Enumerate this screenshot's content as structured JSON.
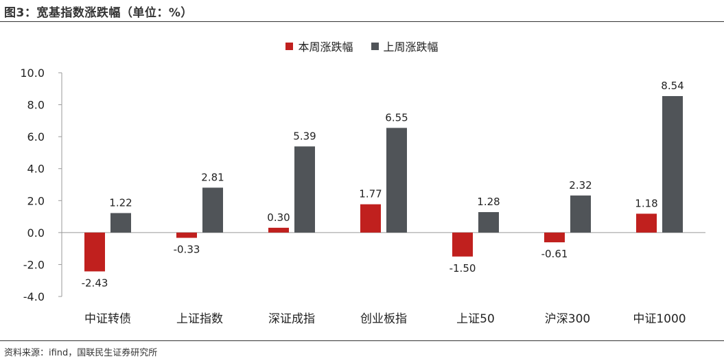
{
  "figure": {
    "title": "图3：宽基指数涨跌幅（单位：%）",
    "source": "资料来源：ifind，国联民生证券研究所"
  },
  "colors": {
    "this_week": "#C0201E",
    "last_week": "#505458",
    "axis": "#999999",
    "text": "#222222"
  },
  "chart_data": {
    "type": "bar",
    "title": "",
    "xlabel": "",
    "ylabel": "",
    "categories": [
      "中证转债",
      "上证指数",
      "深证成指",
      "创业板指",
      "上证50",
      "沪深300",
      "中证1000"
    ],
    "series": [
      {
        "name": "本周涨跌幅",
        "values": [
          -2.43,
          -0.33,
          0.3,
          1.77,
          -1.5,
          -0.61,
          1.18
        ]
      },
      {
        "name": "上周涨跌幅",
        "values": [
          1.22,
          2.81,
          5.39,
          6.55,
          1.28,
          2.32,
          8.54
        ]
      }
    ],
    "ylim": [
      -4.0,
      10.0
    ],
    "yticks": [
      -4.0,
      -2.0,
      0.0,
      2.0,
      4.0,
      6.0,
      8.0,
      10.0
    ],
    "ytick_format": "0.0",
    "value_format": "0.00",
    "grid": false,
    "legend_position": "top-center"
  }
}
